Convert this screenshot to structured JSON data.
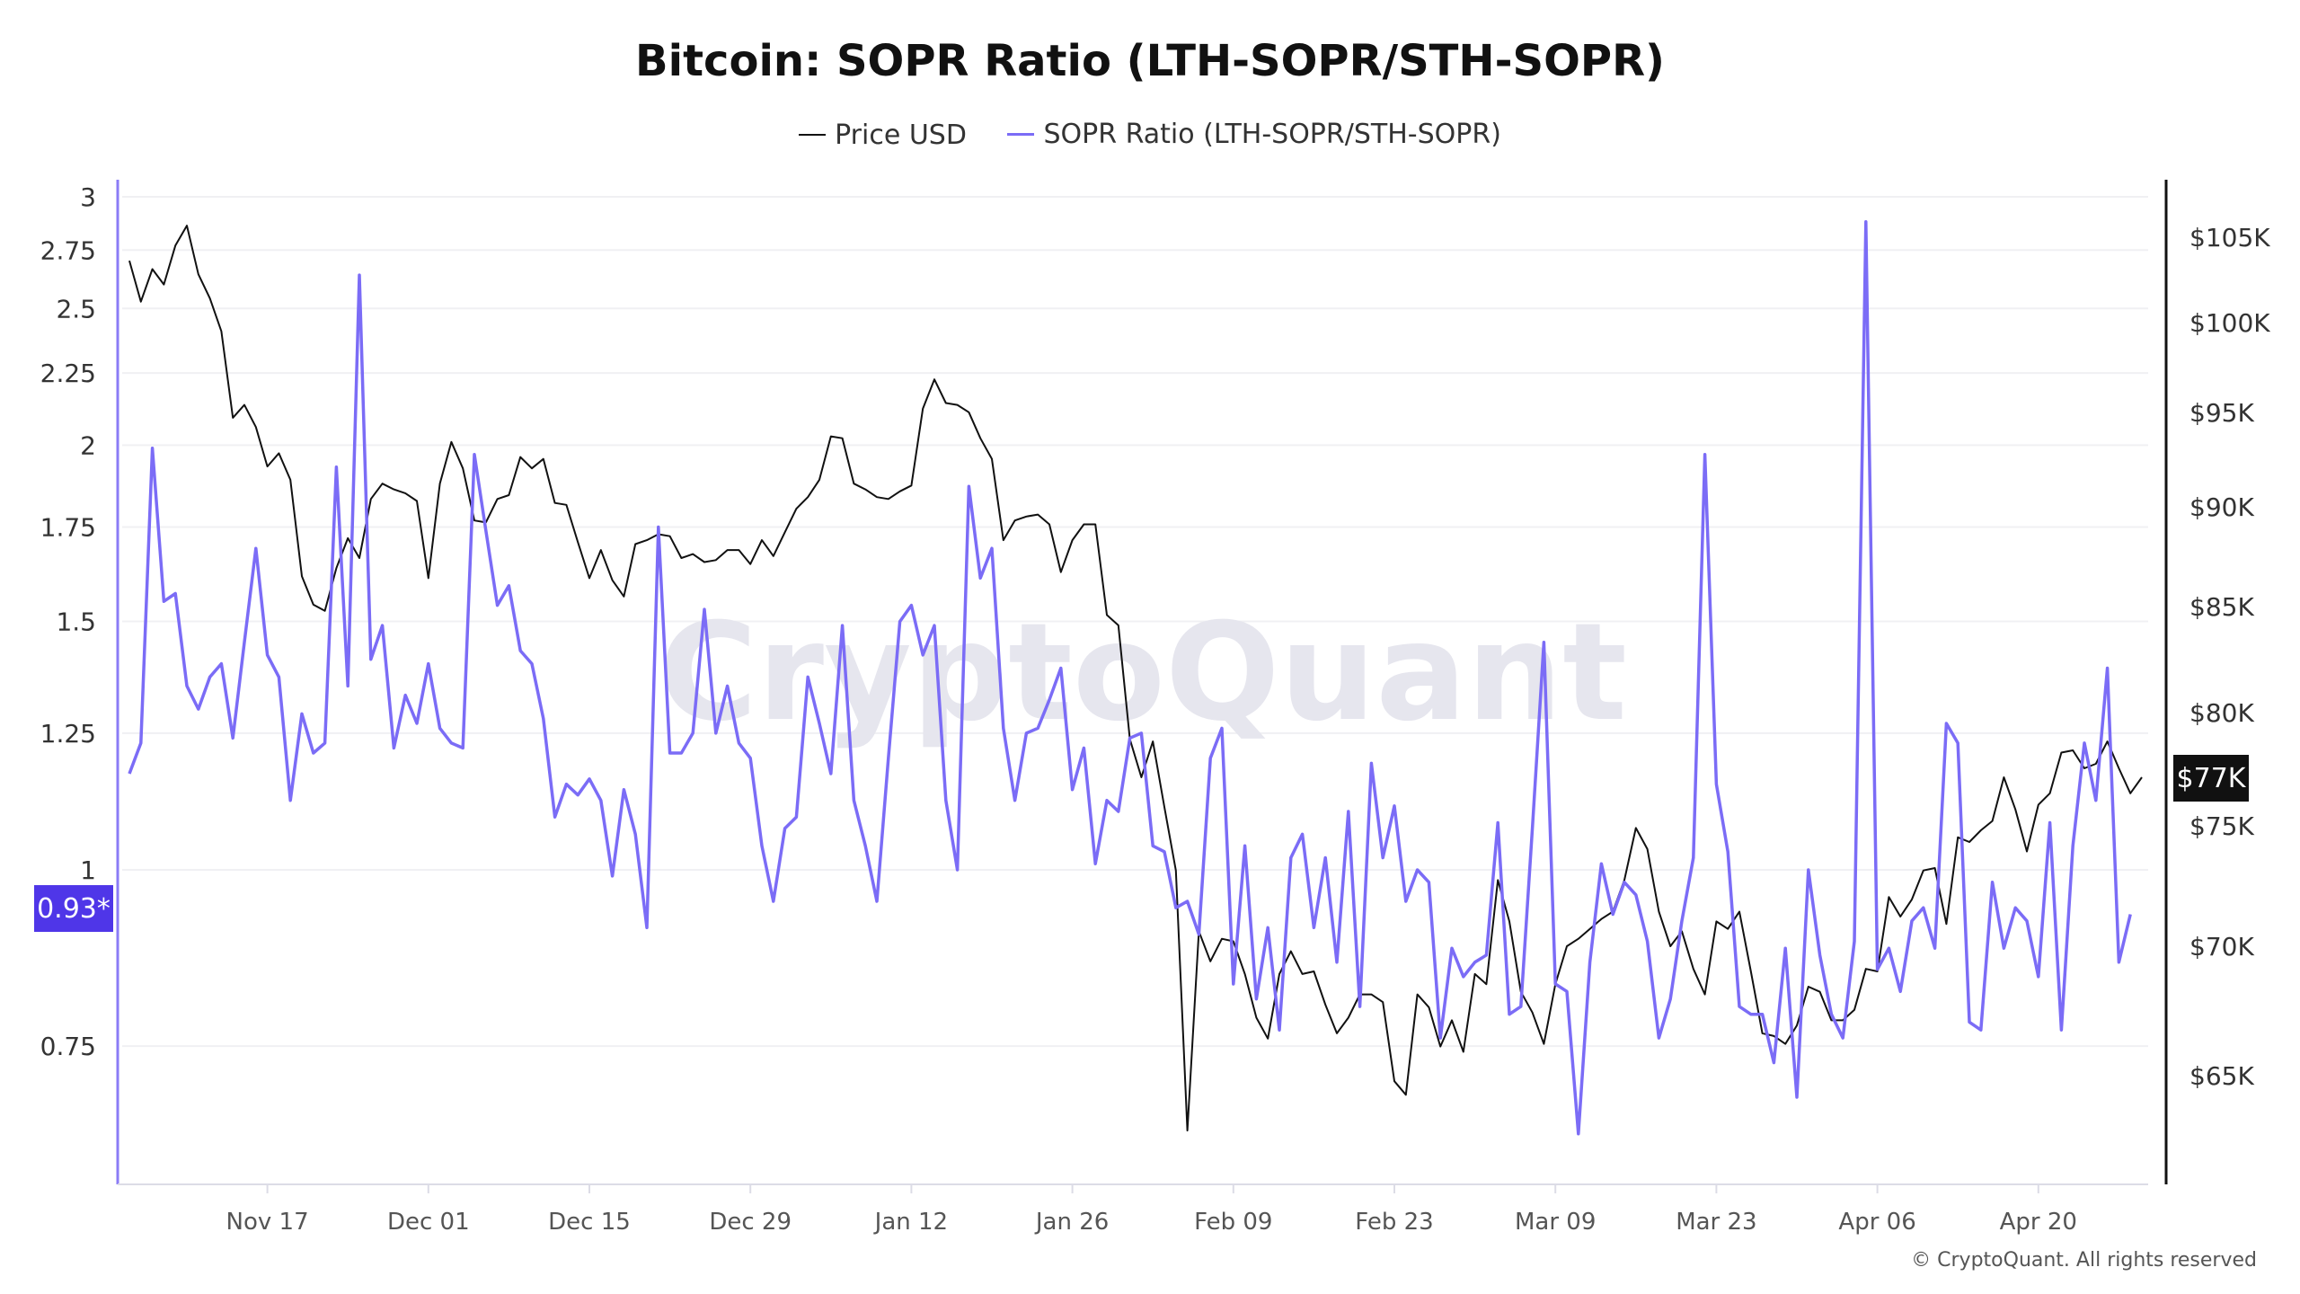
{
  "chart_data": {
    "type": "line",
    "title": "Bitcoin: SOPR Ratio (LTH-SOPR/STH-SOPR)",
    "legend_position": "top-center",
    "grid": true,
    "x_ticks": [
      "Nov 17",
      "Dec 01",
      "Dec 15",
      "Dec 29",
      "Jan 12",
      "Jan 26",
      "Feb 09",
      "Feb 23",
      "Mar 09",
      "Mar 23",
      "Apr 06",
      "Apr 20"
    ],
    "x": [
      "Nov 05",
      "Nov 06",
      "Nov 07",
      "Nov 08",
      "Nov 09",
      "Nov 10",
      "Nov 11",
      "Nov 12",
      "Nov 13",
      "Nov 14",
      "Nov 15",
      "Nov 16",
      "Nov 17",
      "Nov 18",
      "Nov 19",
      "Nov 20",
      "Nov 21",
      "Nov 22",
      "Nov 23",
      "Nov 24",
      "Nov 25",
      "Nov 26",
      "Nov 27",
      "Nov 28",
      "Nov 29",
      "Nov 30",
      "Dec 01",
      "Dec 02",
      "Dec 03",
      "Dec 04",
      "Dec 05",
      "Dec 06",
      "Dec 07",
      "Dec 08",
      "Dec 09",
      "Dec 10",
      "Dec 11",
      "Dec 12",
      "Dec 13",
      "Dec 14",
      "Dec 15",
      "Dec 16",
      "Dec 17",
      "Dec 18",
      "Dec 19",
      "Dec 20",
      "Dec 21",
      "Dec 22",
      "Dec 23",
      "Dec 24",
      "Dec 25",
      "Dec 26",
      "Dec 27",
      "Dec 28",
      "Dec 29",
      "Dec 30",
      "Dec 31",
      "Jan 01",
      "Jan 02",
      "Jan 03",
      "Jan 04",
      "Jan 05",
      "Jan 06",
      "Jan 07",
      "Jan 08",
      "Jan 09",
      "Jan 10",
      "Jan 11",
      "Jan 12",
      "Jan 13",
      "Jan 14",
      "Jan 15",
      "Jan 16",
      "Jan 17",
      "Jan 18",
      "Jan 19",
      "Jan 20",
      "Jan 21",
      "Jan 22",
      "Jan 23",
      "Jan 24",
      "Jan 25",
      "Jan 26",
      "Jan 27",
      "Jan 28",
      "Jan 29",
      "Jan 30",
      "Jan 31",
      "Feb 01",
      "Feb 02",
      "Feb 03",
      "Feb 04",
      "Feb 05",
      "Feb 06",
      "Feb 07",
      "Feb 08",
      "Feb 09",
      "Feb 10",
      "Feb 11",
      "Feb 12",
      "Feb 13",
      "Feb 14",
      "Feb 15",
      "Feb 16",
      "Feb 17",
      "Feb 18",
      "Feb 19",
      "Feb 20",
      "Feb 21",
      "Feb 22",
      "Feb 23",
      "Feb 24",
      "Feb 25",
      "Feb 26",
      "Feb 27",
      "Feb 28",
      "Mar 01",
      "Mar 02",
      "Mar 03",
      "Mar 04",
      "Mar 05",
      "Mar 06",
      "Mar 07",
      "Mar 08",
      "Mar 09",
      "Mar 10",
      "Mar 11",
      "Mar 12",
      "Mar 13",
      "Mar 14",
      "Mar 15",
      "Mar 16",
      "Mar 17",
      "Mar 18",
      "Mar 19",
      "Mar 20",
      "Mar 21",
      "Mar 22",
      "Mar 23",
      "Mar 24",
      "Mar 25",
      "Mar 26",
      "Mar 27",
      "Mar 28",
      "Mar 29",
      "Mar 30",
      "Mar 31",
      "Apr 01",
      "Apr 02",
      "Apr 03",
      "Apr 04",
      "Apr 05",
      "Apr 06",
      "Apr 07",
      "Apr 08",
      "Apr 09",
      "Apr 10",
      "Apr 11",
      "Apr 12",
      "Apr 13",
      "Apr 14",
      "Apr 15",
      "Apr 16",
      "Apr 17",
      "Apr 18",
      "Apr 19",
      "Apr 20",
      "Apr 21",
      "Apr 22",
      "Apr 23",
      "Apr 24",
      "Apr 25",
      "Apr 26",
      "Apr 27",
      "Apr 28",
      "Apr 29"
    ],
    "y_left": {
      "scale": "log",
      "ticks": [
        "0.75",
        "1",
        "1.25",
        "1.5",
        "1.75",
        "2",
        "2.25",
        "2.5",
        "2.75",
        "3"
      ],
      "tick_values": [
        0.75,
        1,
        1.25,
        1.5,
        1.75,
        2,
        2.25,
        2.5,
        2.75,
        3
      ],
      "current_label": "0.93*",
      "current_value": 0.93
    },
    "y_right": {
      "scale": "log",
      "ticks": [
        "$65K",
        "$70K",
        "$75K",
        "$80K",
        "$85K",
        "$90K",
        "$95K",
        "$100K",
        "$105K"
      ],
      "tick_values": [
        65000,
        70000,
        75000,
        80000,
        85000,
        90000,
        95000,
        100000,
        105000
      ],
      "current_label": "$77K",
      "current_value": 77000
    },
    "series": [
      {
        "name": "Price USD",
        "axis": "right",
        "color": "#111111",
        "values": [
          103600,
          101200,
          103100,
          102200,
          104500,
          105700,
          102800,
          101400,
          99500,
          94700,
          95400,
          94200,
          92100,
          92800,
          91400,
          86500,
          85100,
          84800,
          86900,
          88400,
          87400,
          90400,
          91200,
          90900,
          90700,
          90300,
          86400,
          91200,
          93400,
          92000,
          89300,
          89200,
          90400,
          90600,
          92600,
          92000,
          92500,
          90200,
          90100,
          88200,
          86400,
          87800,
          86300,
          85500,
          88100,
          88300,
          88600,
          88500,
          87400,
          87600,
          87200,
          87300,
          87800,
          87800,
          87100,
          88300,
          87500,
          88700,
          89900,
          90500,
          91400,
          93700,
          93600,
          91200,
          90900,
          90500,
          90400,
          90800,
          91100,
          95200,
          96800,
          95500,
          95400,
          95000,
          93600,
          92500,
          88300,
          89300,
          89500,
          89600,
          89100,
          86700,
          88300,
          89100,
          89100,
          84600,
          84100,
          78800,
          77100,
          78700,
          75800,
          73100,
          63000,
          70600,
          69400,
          70300,
          70200,
          68900,
          67200,
          66400,
          68900,
          69800,
          68900,
          69000,
          67700,
          66600,
          67200,
          68100,
          68100,
          67800,
          64800,
          64300,
          68100,
          67600,
          66100,
          67100,
          65900,
          68900,
          68500,
          72700,
          71000,
          68200,
          67400,
          66200,
          68500,
          70000,
          70300,
          70700,
          71100,
          71400,
          72700,
          74900,
          74000,
          71400,
          70000,
          70600,
          69100,
          68100,
          71000,
          70700,
          71400,
          69000,
          66600,
          66500,
          66200,
          66900,
          68400,
          68200,
          67100,
          67100,
          67500,
          69100,
          69000,
          72000,
          71200,
          71900,
          73100,
          73200,
          70900,
          74500,
          74300,
          74800,
          75200,
          77100,
          75700,
          73900,
          75900,
          76400,
          78200,
          78300,
          77500,
          77700,
          78700,
          77500,
          76400,
          77100
        ]
      },
      {
        "name": "SOPR Ratio (LTH-SOPR/STH-SOPR)",
        "axis": "left",
        "color": "#7b6cf6",
        "values": [
          1.17,
          1.23,
          1.99,
          1.55,
          1.57,
          1.35,
          1.3,
          1.37,
          1.4,
          1.24,
          1.45,
          1.69,
          1.42,
          1.37,
          1.12,
          1.29,
          1.21,
          1.23,
          1.93,
          1.35,
          2.64,
          1.41,
          1.49,
          1.22,
          1.33,
          1.27,
          1.4,
          1.26,
          1.23,
          1.22,
          1.97,
          1.74,
          1.54,
          1.59,
          1.43,
          1.4,
          1.28,
          1.09,
          1.15,
          1.13,
          1.16,
          1.12,
          0.99,
          1.14,
          1.06,
          0.91,
          1.75,
          1.21,
          1.21,
          1.25,
          1.53,
          1.25,
          1.35,
          1.23,
          1.2,
          1.04,
          0.95,
          1.07,
          1.09,
          1.37,
          1.27,
          1.17,
          1.49,
          1.12,
          1.04,
          0.95,
          1.2,
          1.5,
          1.54,
          1.42,
          1.49,
          1.12,
          1.0,
          1.87,
          1.61,
          1.69,
          1.26,
          1.12,
          1.25,
          1.26,
          1.32,
          1.39,
          1.14,
          1.22,
          1.01,
          1.12,
          1.1,
          1.24,
          1.25,
          1.04,
          1.03,
          0.94,
          0.95,
          0.9,
          1.2,
          1.26,
          0.83,
          1.04,
          0.81,
          0.91,
          0.77,
          1.02,
          1.06,
          0.91,
          1.02,
          0.86,
          1.1,
          0.8,
          1.19,
          1.02,
          1.11,
          0.95,
          1.0,
          0.98,
          0.76,
          0.88,
          0.84,
          0.86,
          0.87,
          1.08,
          0.79,
          0.8,
          1.07,
          1.45,
          0.83,
          0.82,
          0.65,
          0.86,
          1.01,
          0.93,
          0.98,
          0.96,
          0.89,
          0.76,
          0.81,
          0.92,
          1.02,
          1.97,
          1.15,
          1.03,
          0.8,
          0.79,
          0.79,
          0.73,
          0.88,
          0.69,
          1.0,
          0.87,
          0.79,
          0.76,
          0.89,
          2.88,
          0.85,
          0.88,
          0.82,
          0.92,
          0.94,
          0.88,
          1.27,
          1.23,
          0.78,
          0.77,
          0.98,
          0.88,
          0.94,
          0.92,
          0.84,
          1.08,
          0.77,
          1.04,
          1.23,
          1.12,
          1.39,
          0.86,
          0.93,
          null
        ]
      }
    ]
  },
  "watermark": "CryptoQuant",
  "copyright": "© CryptoQuant. All rights reserved"
}
